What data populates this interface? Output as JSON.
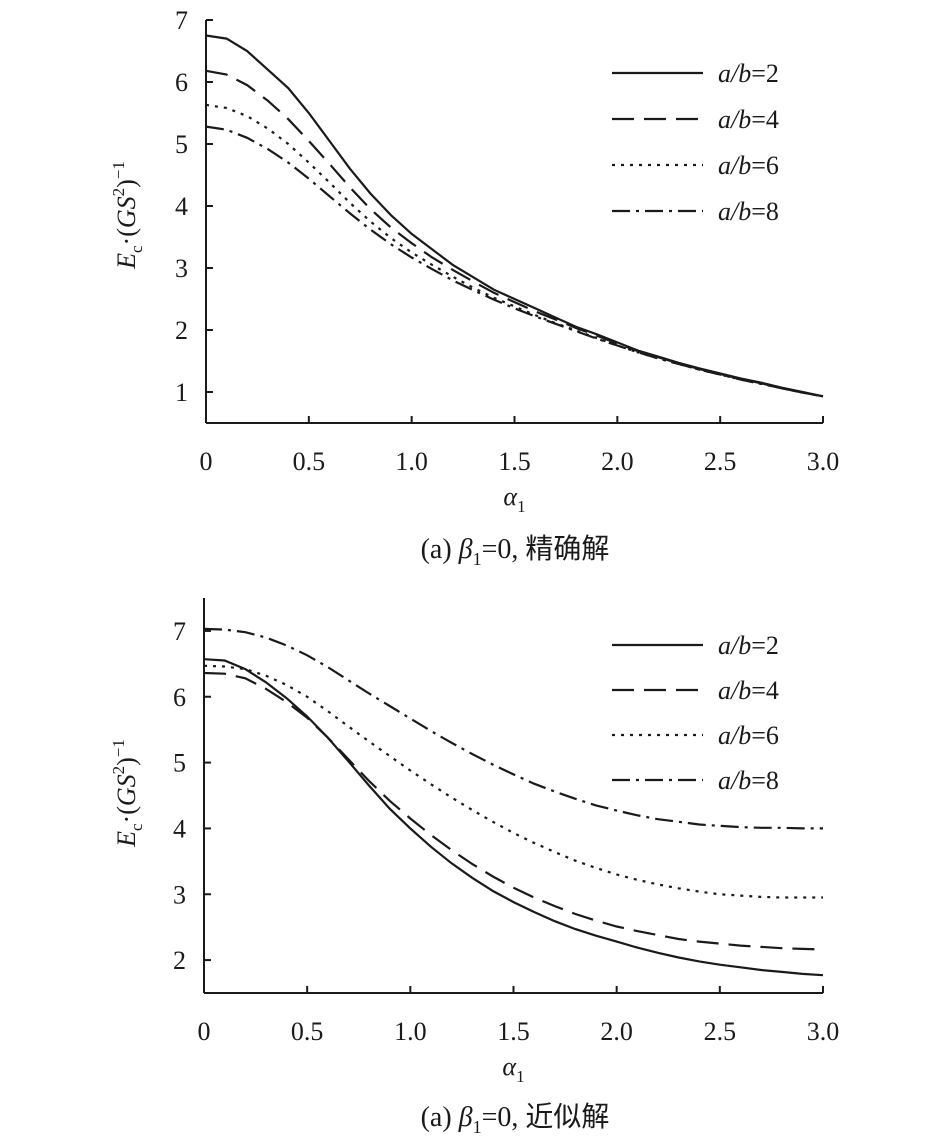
{
  "chart_data": [
    {
      "type": "line",
      "xlabel": "α",
      "xlabel_sub": "1",
      "ylabel": "E·(GS)",
      "ylabel_sub": "c",
      "ylabel_sup1": "2",
      "ylabel_sup2": "−1",
      "xlim": [
        0,
        3.0
      ],
      "ylim": [
        0.5,
        7
      ],
      "x_ticks": [
        0,
        0.5,
        1.0,
        1.5,
        2.0,
        2.5,
        3.0
      ],
      "x_tick_labels": [
        "0",
        "0.5",
        "1.0",
        "1.5",
        "2.0",
        "2.5",
        "3.0"
      ],
      "y_ticks": [
        1,
        2,
        3,
        4,
        5,
        6,
        7
      ],
      "y_tick_labels": [
        "1",
        "2",
        "3",
        "4",
        "5",
        "6",
        "7"
      ],
      "legend_position": "top-right",
      "caption": {
        "prefix": "(a) ",
        "symbol": "β",
        "symbol_sub": "1",
        "suffix": "=0, 精确解"
      },
      "x": [
        0,
        0.1,
        0.2,
        0.3,
        0.4,
        0.5,
        0.6,
        0.7,
        0.8,
        0.9,
        1.0,
        1.1,
        1.2,
        1.3,
        1.4,
        1.5,
        1.6,
        1.7,
        1.8,
        1.9,
        2.0,
        2.1,
        2.2,
        2.3,
        2.4,
        2.5,
        2.6,
        2.7,
        2.8,
        2.9,
        3.0
      ],
      "series": [
        {
          "name": "a/b=2",
          "legend_lhs": "a/b",
          "legend_rhs": "=2",
          "dash": "solid",
          "values": [
            6.75,
            6.7,
            6.5,
            6.2,
            5.9,
            5.5,
            5.05,
            4.6,
            4.2,
            3.85,
            3.55,
            3.3,
            3.05,
            2.85,
            2.65,
            2.5,
            2.35,
            2.2,
            2.05,
            1.93,
            1.8,
            1.67,
            1.57,
            1.47,
            1.38,
            1.3,
            1.22,
            1.15,
            1.07,
            1.0,
            0.93
          ]
        },
        {
          "name": "a/b=4",
          "legend_lhs": "a/b",
          "legend_rhs": "=4",
          "dash": "dashed",
          "values": [
            6.18,
            6.12,
            5.95,
            5.7,
            5.4,
            5.05,
            4.68,
            4.3,
            3.95,
            3.65,
            3.4,
            3.17,
            2.97,
            2.78,
            2.6,
            2.45,
            2.3,
            2.17,
            2.03,
            1.91,
            1.78,
            1.66,
            1.56,
            1.46,
            1.37,
            1.29,
            1.21,
            1.14,
            1.06,
            0.99,
            0.93
          ]
        },
        {
          "name": "a/b=6",
          "legend_lhs": "a/b",
          "legend_rhs": "=6",
          "dash": "dotted",
          "values": [
            5.63,
            5.58,
            5.45,
            5.25,
            5.0,
            4.7,
            4.38,
            4.05,
            3.75,
            3.48,
            3.25,
            3.05,
            2.86,
            2.68,
            2.52,
            2.38,
            2.24,
            2.11,
            1.99,
            1.87,
            1.75,
            1.64,
            1.54,
            1.45,
            1.36,
            1.28,
            1.2,
            1.13,
            1.06,
            0.99,
            0.93
          ]
        },
        {
          "name": "a/b=8",
          "legend_lhs": "a/b",
          "legend_rhs": "=8",
          "dash": "dashdot",
          "values": [
            5.28,
            5.23,
            5.1,
            4.92,
            4.7,
            4.44,
            4.16,
            3.88,
            3.62,
            3.38,
            3.17,
            2.98,
            2.8,
            2.64,
            2.49,
            2.35,
            2.22,
            2.1,
            1.98,
            1.86,
            1.75,
            1.64,
            1.54,
            1.45,
            1.36,
            1.28,
            1.2,
            1.13,
            1.06,
            0.99,
            0.93
          ]
        }
      ]
    },
    {
      "type": "line",
      "xlabel": "α",
      "xlabel_sub": "1",
      "ylabel": "E·(GS)",
      "ylabel_sub": "c",
      "ylabel_sup1": "2",
      "ylabel_sup2": "−1",
      "xlim": [
        0,
        3.0
      ],
      "ylim": [
        1.5,
        7.5
      ],
      "x_ticks": [
        0,
        0.5,
        1.0,
        1.5,
        2.0,
        2.5,
        3.0
      ],
      "x_tick_labels": [
        "0",
        "0.5",
        "1.0",
        "1.5",
        "2.0",
        "2.5",
        "3.0"
      ],
      "y_ticks": [
        2,
        3,
        4,
        5,
        6,
        7
      ],
      "y_tick_labels": [
        "2",
        "3",
        "4",
        "5",
        "6",
        "7"
      ],
      "legend_position": "top-right",
      "caption": {
        "prefix": "(a) ",
        "symbol": "β",
        "symbol_sub": "1",
        "suffix": "=0, 近似解"
      },
      "x": [
        0,
        0.1,
        0.2,
        0.3,
        0.4,
        0.5,
        0.6,
        0.7,
        0.8,
        0.9,
        1.0,
        1.1,
        1.2,
        1.3,
        1.4,
        1.5,
        1.6,
        1.7,
        1.8,
        1.9,
        2.0,
        2.1,
        2.2,
        2.3,
        2.4,
        2.5,
        2.6,
        2.7,
        2.8,
        2.9,
        3.0
      ],
      "series": [
        {
          "name": "a/b=2",
          "legend_lhs": "a/b",
          "legend_rhs": "=2",
          "dash": "solid",
          "values": [
            6.57,
            6.55,
            6.42,
            6.22,
            5.98,
            5.7,
            5.38,
            5.02,
            4.65,
            4.3,
            4.0,
            3.72,
            3.47,
            3.25,
            3.05,
            2.88,
            2.73,
            2.59,
            2.47,
            2.37,
            2.28,
            2.19,
            2.11,
            2.04,
            1.98,
            1.93,
            1.89,
            1.85,
            1.82,
            1.79,
            1.77
          ]
        },
        {
          "name": "a/b=4",
          "legend_lhs": "a/b",
          "legend_rhs": "=4",
          "dash": "dashed",
          "values": [
            6.36,
            6.35,
            6.28,
            6.12,
            5.92,
            5.68,
            5.38,
            5.05,
            4.72,
            4.42,
            4.15,
            3.9,
            3.67,
            3.46,
            3.27,
            3.1,
            2.95,
            2.82,
            2.7,
            2.6,
            2.51,
            2.44,
            2.38,
            2.32,
            2.28,
            2.25,
            2.22,
            2.2,
            2.18,
            2.17,
            2.16
          ]
        },
        {
          "name": "a/b=6",
          "legend_lhs": "a/b",
          "legend_rhs": "=6",
          "dash": "dotted",
          "values": [
            6.47,
            6.46,
            6.42,
            6.32,
            6.18,
            6.0,
            5.78,
            5.55,
            5.32,
            5.1,
            4.88,
            4.67,
            4.47,
            4.28,
            4.1,
            3.93,
            3.78,
            3.64,
            3.51,
            3.4,
            3.3,
            3.22,
            3.15,
            3.09,
            3.04,
            3.0,
            2.98,
            2.96,
            2.95,
            2.95,
            2.95
          ]
        },
        {
          "name": "a/b=8",
          "legend_lhs": "a/b",
          "legend_rhs": "=8",
          "dash": "dashdot",
          "values": [
            7.03,
            7.02,
            6.98,
            6.9,
            6.78,
            6.63,
            6.45,
            6.25,
            6.05,
            5.86,
            5.67,
            5.48,
            5.3,
            5.13,
            4.97,
            4.82,
            4.68,
            4.56,
            4.45,
            4.35,
            4.27,
            4.2,
            4.14,
            4.1,
            4.06,
            4.04,
            4.02,
            4.01,
            4.01,
            4.0,
            4.0
          ]
        }
      ]
    }
  ]
}
